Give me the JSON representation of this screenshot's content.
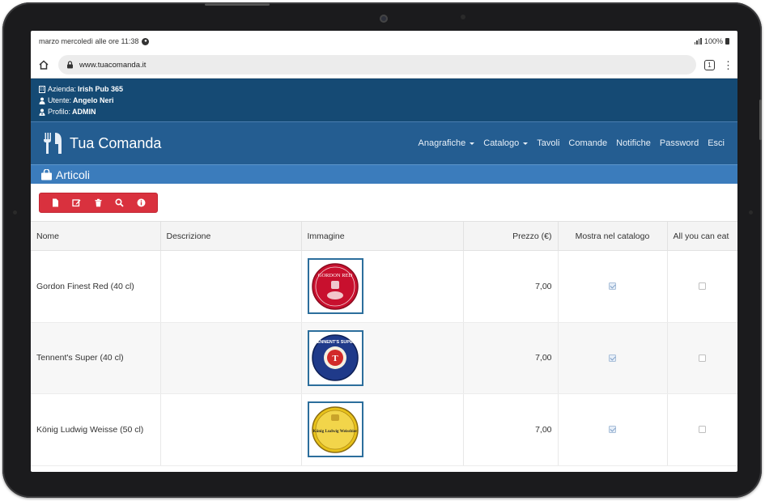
{
  "status_bar": {
    "left_text": "marzo mercoledì alle ore 11:38",
    "battery": "100%"
  },
  "browser": {
    "url": "www.tuacomanda.it",
    "tab_count": "1"
  },
  "info": {
    "azienda_label": "Azienda:",
    "azienda_value": "Irish Pub 365",
    "utente_label": "Utente:",
    "utente_value": "Angelo Neri",
    "profilo_label": "Profilo:",
    "profilo_value": "ADMIN"
  },
  "nav": {
    "brand": "Tua Comanda",
    "items": [
      "Anagrafiche",
      "Catalogo",
      "Tavoli",
      "Comande",
      "Notifiche",
      "Password",
      "Esci"
    ]
  },
  "section": {
    "title": "Articoli"
  },
  "toolbar": {
    "buttons": [
      "new-icon",
      "edit-icon",
      "delete-icon",
      "search-icon",
      "info-icon"
    ]
  },
  "table": {
    "headers": {
      "nome": "Nome",
      "descrizione": "Descrizione",
      "immagine": "Immagine",
      "prezzo": "Prezzo (€)",
      "mostra": "Mostra nel catalogo",
      "ayce": "All you can eat"
    },
    "rows": [
      {
        "nome": "Gordon Finest Red (40 cl)",
        "descrizione": "",
        "prezzo": "7,00",
        "mostra": true,
        "ayce": false
      },
      {
        "nome": "Tennent's Super (40 cl)",
        "descrizione": "",
        "prezzo": "7,00",
        "mostra": true,
        "ayce": false
      },
      {
        "nome": "König Ludwig Weisse (50 cl)",
        "descrizione": "",
        "prezzo": "7,00",
        "mostra": true,
        "ayce": false
      }
    ]
  },
  "logos": {
    "row0": "GORDON RED",
    "row1": "TENNENT'S SUPER",
    "row2": "König Ludwig Weissbier"
  },
  "colors": {
    "info_bar": "#154a74",
    "nav_bar": "#245d91",
    "section_bar": "#3b7cbc",
    "toolbar_red": "#d9313e"
  }
}
